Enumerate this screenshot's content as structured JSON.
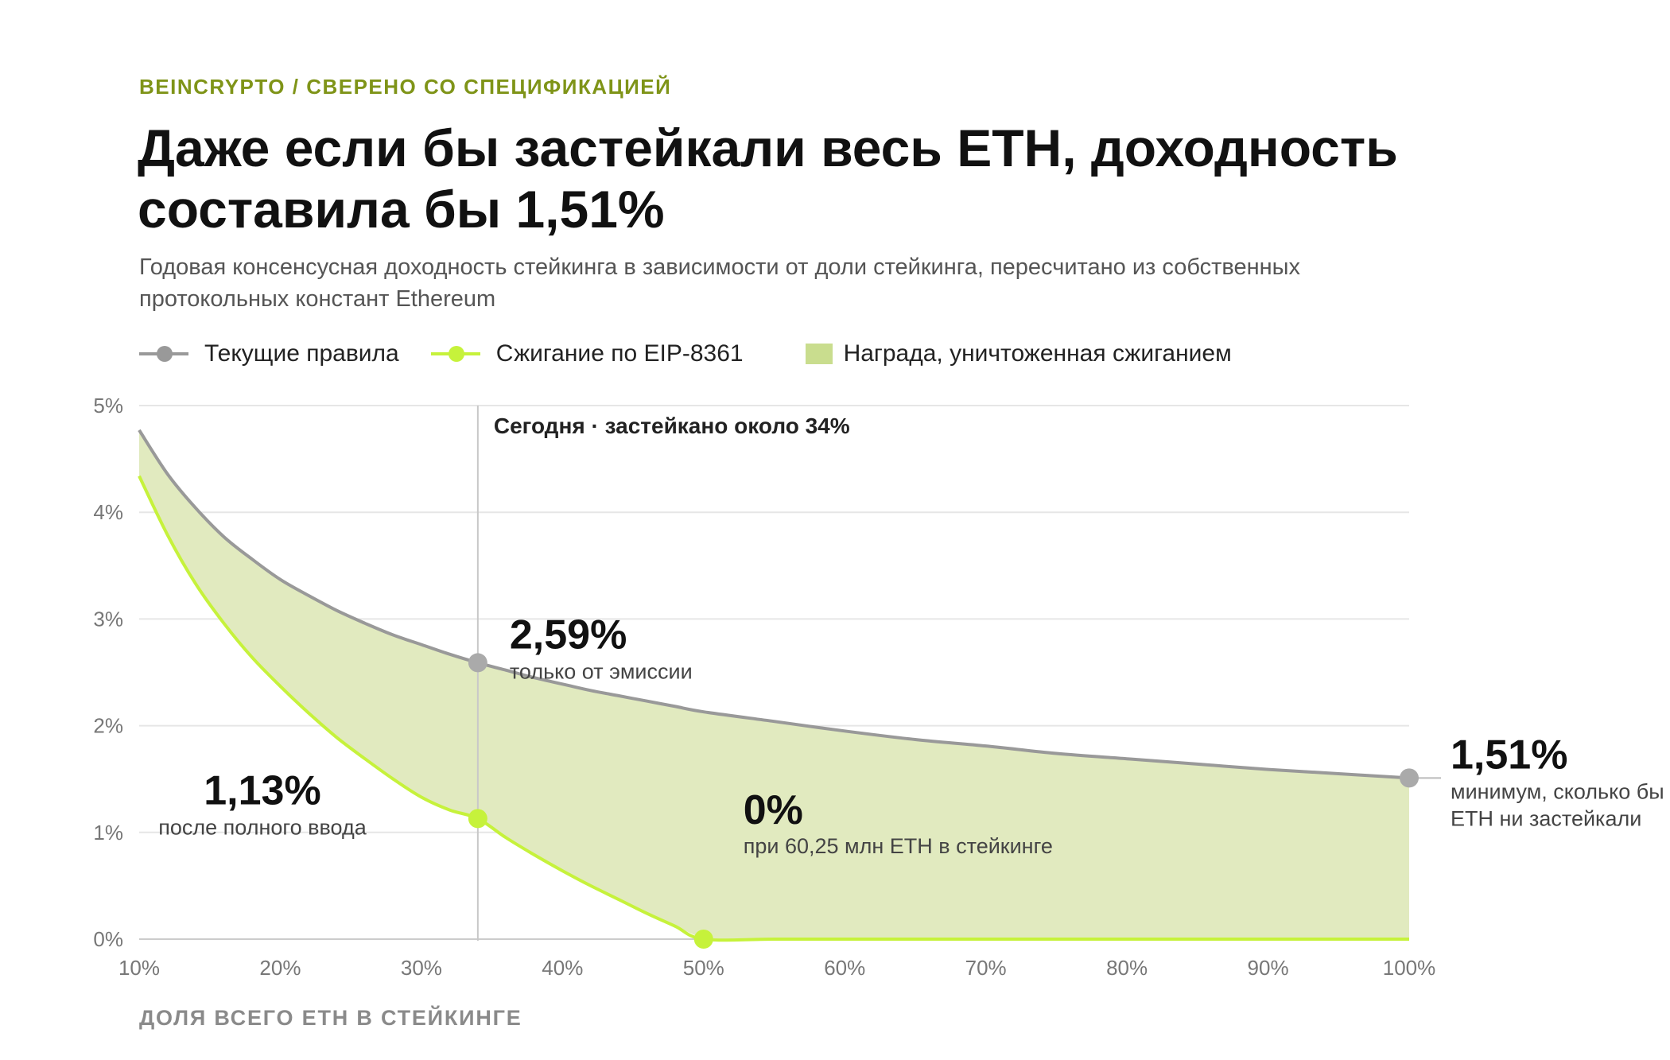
{
  "header": {
    "source": "BEINCRYPTO / СВЕРЕНО СО СПЕЦИФИКАЦИЕЙ",
    "title": "Даже если бы застейкали весь ETH, доходность составила бы 1,51%",
    "subtitle": "Годовая консенсусная доходность стейкинга в зависимости от доли стейкинга, пересчитано из собственных протокольных констант Ethereum"
  },
  "legend": {
    "current": "Текущие правила",
    "burn": "Сжигание по EIP-8361",
    "area": "Награда, уничтоженная сжиганием"
  },
  "colors": {
    "current_line": "#999999",
    "burn_line": "#c6f23b",
    "area_fill": "#e1eabf",
    "legend_swatch": "#c9dd8e",
    "accent_text": "#7f9418",
    "grid": "#e6e6e6"
  },
  "chart_data": {
    "type": "area",
    "xlabel": "ДОЛЯ ВСЕГО ETH В СТЕЙКИНГЕ",
    "ylabel": "",
    "xlim": [
      10,
      100
    ],
    "ylim": [
      0,
      5
    ],
    "x_ticks": [
      "10%",
      "20%",
      "30%",
      "40%",
      "50%",
      "60%",
      "70%",
      "80%",
      "90%",
      "100%"
    ],
    "y_ticks": [
      "0%",
      "1%",
      "2%",
      "3%",
      "4%",
      "5%"
    ],
    "grid": true,
    "legend_position": "top-left",
    "series": [
      {
        "name": "Текущие правила",
        "x": [
          10,
          12,
          14,
          16,
          18,
          20,
          22,
          24,
          26,
          28,
          30,
          32,
          34,
          36,
          38,
          40,
          42,
          44,
          46,
          48,
          50,
          55,
          60,
          65,
          70,
          75,
          80,
          85,
          90,
          95,
          100
        ],
        "y": [
          4.77,
          4.36,
          4.04,
          3.77,
          3.56,
          3.37,
          3.22,
          3.08,
          2.96,
          2.85,
          2.76,
          2.67,
          2.59,
          2.52,
          2.45,
          2.39,
          2.33,
          2.28,
          2.23,
          2.18,
          2.13,
          2.04,
          1.95,
          1.87,
          1.81,
          1.74,
          1.69,
          1.64,
          1.59,
          1.55,
          1.51
        ]
      },
      {
        "name": "Сжигание по EIP-8361",
        "x": [
          10,
          12,
          14,
          16,
          18,
          20,
          22,
          24,
          26,
          28,
          30,
          32,
          34,
          36,
          38,
          40,
          42,
          44,
          46,
          48,
          50,
          55,
          60,
          65,
          70,
          75,
          80,
          85,
          90,
          95,
          100
        ],
        "y": [
          4.34,
          3.79,
          3.33,
          2.96,
          2.64,
          2.37,
          2.12,
          1.89,
          1.69,
          1.5,
          1.33,
          1.21,
          1.13,
          0.95,
          0.79,
          0.64,
          0.5,
          0.37,
          0.24,
          0.12,
          0.0,
          0,
          0,
          0,
          0,
          0,
          0,
          0,
          0,
          0,
          0
        ]
      }
    ],
    "today": {
      "x": 34,
      "label": "Сегодня · застейкано около 34%"
    },
    "annotations": [
      {
        "x": 34,
        "y": 2.59,
        "value": "2,59%",
        "text": "только от эмиссии",
        "series": 0
      },
      {
        "x": 34,
        "y": 1.13,
        "value": "1,13%",
        "text": "после полного ввода",
        "series": 1
      },
      {
        "x": 50,
        "y": 0,
        "value": "0%",
        "text": "при 60,25 млн ETH в стейкинге",
        "series": 1
      },
      {
        "x": 100,
        "y": 1.51,
        "value": "1,51%",
        "text_lines": [
          "минимум, сколько бы",
          "ETH ни застейкали"
        ],
        "series": 0
      }
    ]
  }
}
